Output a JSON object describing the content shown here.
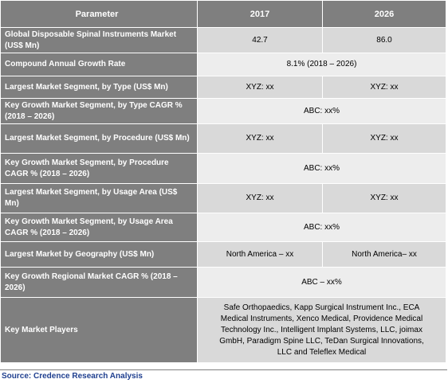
{
  "table": {
    "headers": [
      "Parameter",
      "2017",
      "2026"
    ],
    "rows": [
      {
        "parameter": "Global Disposable Spinal Instruments Market (US$ Mn)",
        "y2017": "42.7",
        "y2026": "86.0"
      },
      {
        "parameter": "Compound Annual Growth Rate",
        "merged": "8.1% (2018 – 2026)"
      },
      {
        "parameter": "Largest Market Segment, by Type (US$ Mn)",
        "y2017": "XYZ: xx",
        "y2026": "XYZ: xx"
      },
      {
        "parameter": "Key Growth Market Segment, by Type CAGR % (2018 – 2026)",
        "merged": "ABC: xx%"
      },
      {
        "parameter": "Largest Market Segment, by Procedure (US$ Mn)",
        "y2017": "XYZ: xx",
        "y2026": "XYZ: xx"
      },
      {
        "parameter": "Key Growth Market Segment, by Procedure CAGR % (2018 – 2026)",
        "merged": "ABC: xx%"
      },
      {
        "parameter": "Largest Market Segment, by Usage Area (US$ Mn)",
        "y2017": "XYZ: xx",
        "y2026": "XYZ: xx"
      },
      {
        "parameter": "Key Growth Market Segment, by Usage Area CAGR % (2018 – 2026)",
        "merged": "ABC: xx%"
      },
      {
        "parameter": "Largest Market by Geography (US$ Mn)",
        "y2017": "North America – xx",
        "y2026": "North America– xx"
      },
      {
        "parameter": "Key Growth Regional Market CAGR % (2018 – 2026)",
        "merged": "ABC – xx%"
      },
      {
        "parameter": "Key Market Players",
        "merged": "Safe Orthopaedics, Kapp Surgical Instrument Inc., ECA Medical Instruments, Xenco Medical, Providence Medical Technology Inc., Intelligent Implant Systems, LLC, joimax GmbH, Paradigm Spine LLC, TeDan Surgical Innovations, LLC and Teleflex Medical"
      }
    ]
  },
  "source": "Source: Credence Research Analysis"
}
